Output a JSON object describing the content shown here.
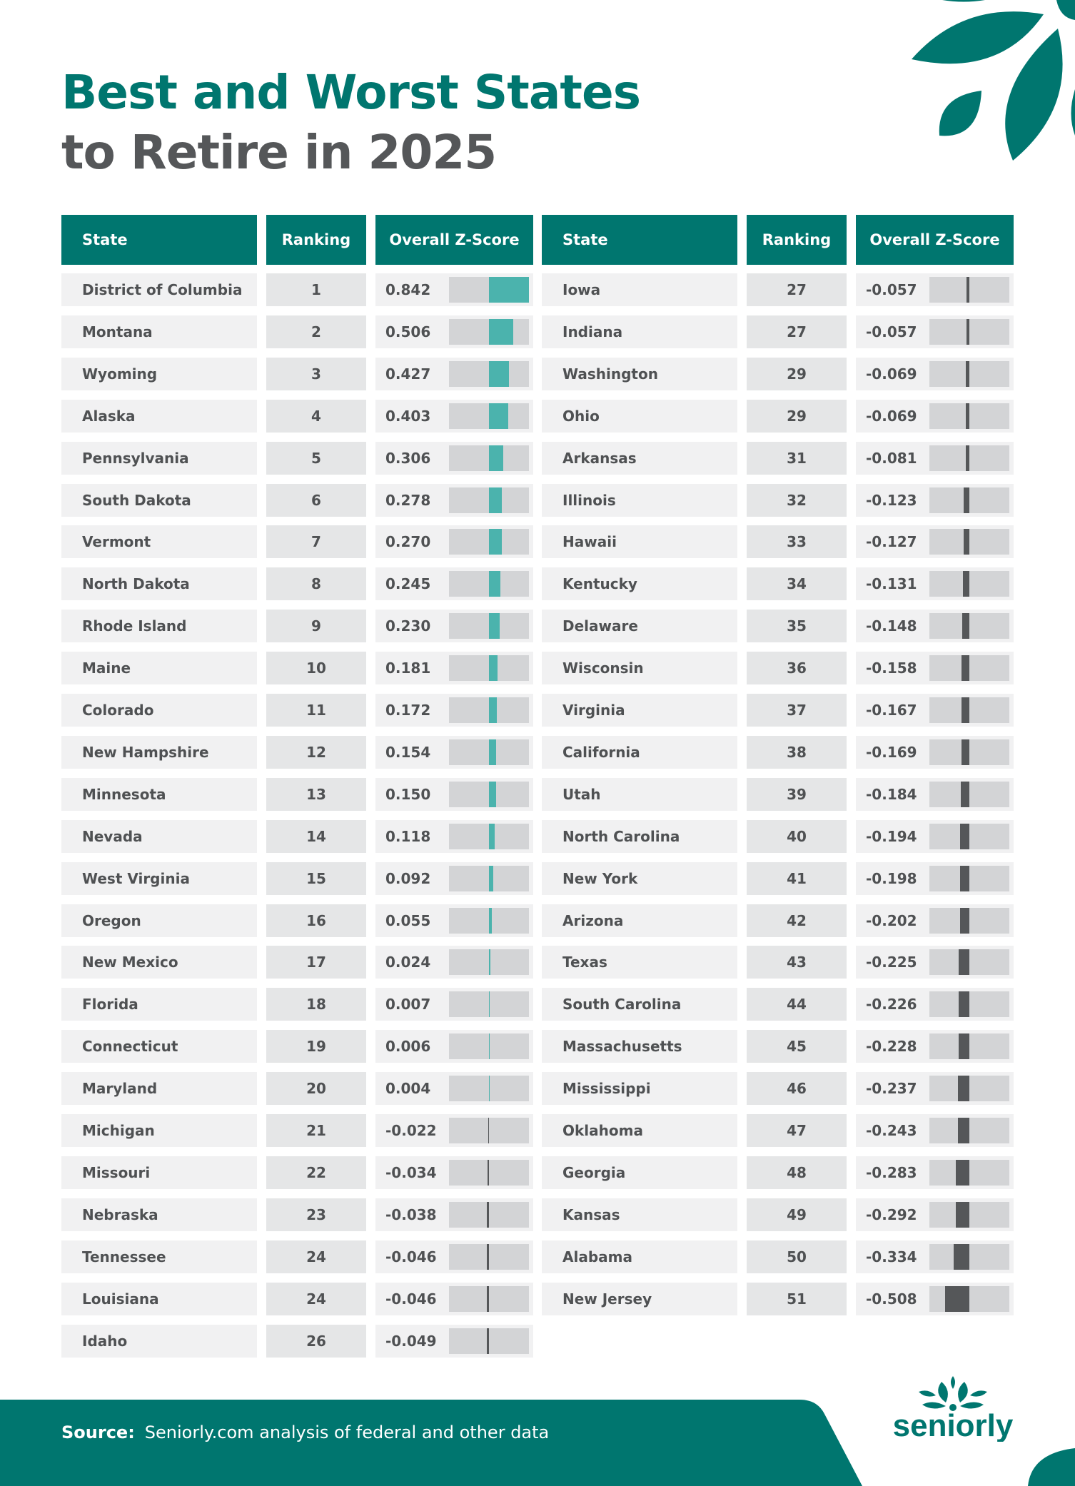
{
  "title": {
    "line1": "Best and Worst States",
    "line2": "to Retire in 2025"
  },
  "colors": {
    "brand": "#00766f",
    "positive_bar": "#4bb3ad",
    "negative_bar": "#555759",
    "bar_track": "#d3d4d6"
  },
  "headers": [
    "State",
    "Ranking",
    "Overall Z-Score"
  ],
  "chart_data": {
    "type": "table",
    "columns": [
      "State",
      "Ranking",
      "Overall Z-Score"
    ],
    "rows": [
      [
        "District of Columbia",
        1,
        0.842
      ],
      [
        "Montana",
        2,
        0.506
      ],
      [
        "Wyoming",
        3,
        0.427
      ],
      [
        "Alaska",
        4,
        0.403
      ],
      [
        "Pennsylvania",
        5,
        0.306
      ],
      [
        "South Dakota",
        6,
        0.278
      ],
      [
        "Vermont",
        7,
        0.27
      ],
      [
        "North Dakota",
        8,
        0.245
      ],
      [
        "Rhode Island",
        9,
        0.23
      ],
      [
        "Maine",
        10,
        0.181
      ],
      [
        "Colorado",
        11,
        0.172
      ],
      [
        "New Hampshire",
        12,
        0.154
      ],
      [
        "Minnesota",
        13,
        0.15
      ],
      [
        "Nevada",
        14,
        0.118
      ],
      [
        "West Virginia",
        15,
        0.092
      ],
      [
        "Oregon",
        16,
        0.055
      ],
      [
        "New Mexico",
        17,
        0.024
      ],
      [
        "Florida",
        18,
        0.007
      ],
      [
        "Connecticut",
        19,
        0.006
      ],
      [
        "Maryland",
        20,
        0.004
      ],
      [
        "Michigan",
        21,
        -0.022
      ],
      [
        "Missouri",
        22,
        -0.034
      ],
      [
        "Nebraska",
        23,
        -0.038
      ],
      [
        "Tennessee",
        24,
        -0.046
      ],
      [
        "Louisiana",
        24,
        -0.046
      ],
      [
        "Idaho",
        26,
        -0.049
      ],
      [
        "Iowa",
        27,
        -0.057
      ],
      [
        "Indiana",
        27,
        -0.057
      ],
      [
        "Washington",
        29,
        -0.069
      ],
      [
        "Ohio",
        29,
        -0.069
      ],
      [
        "Arkansas",
        31,
        -0.081
      ],
      [
        "Illinois",
        32,
        -0.123
      ],
      [
        "Hawaii",
        33,
        -0.127
      ],
      [
        "Kentucky",
        34,
        -0.131
      ],
      [
        "Delaware",
        35,
        -0.148
      ],
      [
        "Wisconsin",
        36,
        -0.158
      ],
      [
        "Virginia",
        37,
        -0.167
      ],
      [
        "California",
        38,
        -0.169
      ],
      [
        "Utah",
        39,
        -0.184
      ],
      [
        "North Carolina",
        40,
        -0.194
      ],
      [
        "New York",
        41,
        -0.198
      ],
      [
        "Arizona",
        42,
        -0.202
      ],
      [
        "Texas",
        43,
        -0.225
      ],
      [
        "South Carolina",
        44,
        -0.226
      ],
      [
        "Massachusetts",
        45,
        -0.228
      ],
      [
        "Mississippi",
        46,
        -0.237
      ],
      [
        "Oklahoma",
        47,
        -0.243
      ],
      [
        "Georgia",
        48,
        -0.283
      ],
      [
        "Kansas",
        49,
        -0.292
      ],
      [
        "Alabama",
        50,
        -0.334
      ],
      [
        "New Jersey",
        51,
        -0.508
      ]
    ]
  },
  "footer": {
    "source_label": "Source:",
    "source_text": "Seniorly.com analysis of federal and other data"
  },
  "logo": {
    "text": "seniorly"
  }
}
